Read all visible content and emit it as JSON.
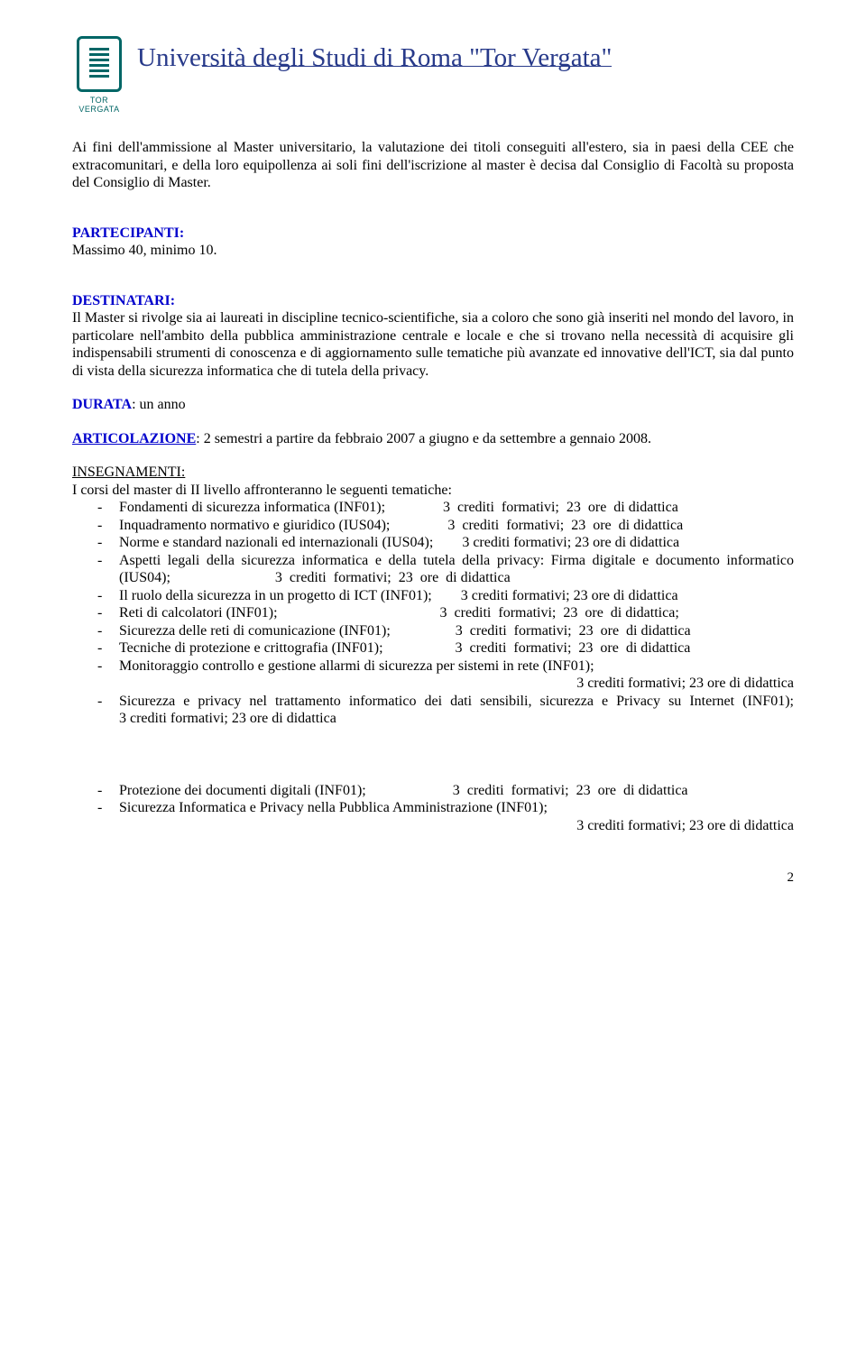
{
  "header": {
    "logo_label": "TOR VERGATA",
    "title": "Università degli Studi di Roma \"Tor Vergata\""
  },
  "intro": "Ai fini dell'ammissione al Master universitario, la valutazione dei titoli conseguiti all'estero, sia in paesi della CEE che extracomunitari, e della loro equipollenza ai soli fini dell'iscrizione al master è decisa dal Consiglio di Facoltà su proposta del Consiglio di Master.",
  "partecipanti": {
    "label": "PARTECIPANTI:",
    "text": "Massimo 40, minimo 10."
  },
  "destinatari": {
    "label": "DESTINATARI:",
    "text": "Il Master si rivolge sia ai laureati in discipline tecnico-scientifiche, sia a coloro che sono già inseriti nel mondo del lavoro, in particolare nell'ambito della pubblica amministrazione centrale e locale e che si trovano nella necessità di acquisire gli indispensabili strumenti di conoscenza e di aggiornamento sulle tematiche più avanzate ed innovative dell'ICT, sia dal punto di vista della sicurezza informatica che di tutela della privacy."
  },
  "durata": {
    "label": "DURATA",
    "text": ": un anno"
  },
  "articolazione": {
    "label": "ARTICOLAZIONE",
    "text": ": 2 semestri a partire da febbraio 2007 a giugno e da settembre a gennaio 2008."
  },
  "insegnamenti": {
    "label": "INSEGNAMENTI:",
    "intro": "I corsi del master di II livello affronteranno le seguenti tematiche:",
    "items": [
      "Fondamenti di sicurezza informatica (INF01);                3  crediti  formativi;  23  ore  di didattica",
      "Inquadramento normativo e giuridico (IUS04);                3  crediti  formativi;  23  ore  di didattica",
      "Norme e standard nazionali ed internazionali (IUS04);        3 crediti formativi; 23 ore di didattica",
      "Aspetti legali della sicurezza informatica e della tutela della privacy: Firma digitale e documento informatico (IUS04);                             3  crediti  formativi;  23  ore  di didattica",
      "Il ruolo della sicurezza in un progetto di ICT (INF01);        3 crediti formativi; 23 ore di didattica",
      "Reti di calcolatori (INF01);                                             3  crediti  formativi;  23  ore  di didattica;",
      "Sicurezza delle reti di comunicazione (INF01);                  3  crediti  formativi;  23  ore  di didattica",
      "Tecniche di protezione e crittografia (INF01);                    3  crediti  formativi;  23  ore  di didattica",
      "Monitoraggio controllo e gestione allarmi di sicurezza per sistemi in rete (INF01);\n3 crediti formativi; 23 ore di didattica",
      "Sicurezza e privacy nel trattamento informatico dei dati sensibili, sicurezza e Privacy su Internet (INF01);                                                         3 crediti formativi; 23 ore di didattica"
    ],
    "items2": [
      "Protezione dei documenti digitali (INF01);                        3  crediti  formativi;  23  ore  di didattica",
      "Sicurezza Informatica e Privacy nella Pubblica Amministrazione (INF01);\n3 crediti formativi; 23 ore di didattica"
    ]
  },
  "pagenum": "2",
  "colors": {
    "brand_blue": "#283a8a",
    "teal": "#006666",
    "link_blue": "#0000cc",
    "text": "#000000",
    "bg": "#ffffff"
  }
}
